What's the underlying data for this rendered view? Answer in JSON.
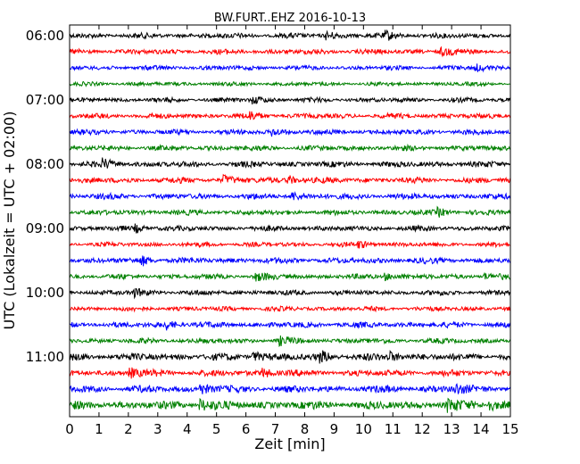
{
  "chart_data": {
    "type": "line",
    "title": "BW.FURT..EHZ 2016-10-13",
    "xlabel": "Zeit  [min]",
    "ylabel": "UTC (Lokalzeit = UTC + 02:00)",
    "xlim": [
      0,
      15
    ],
    "x_ticks": [
      "0",
      "1",
      "2",
      "3",
      "4",
      "5",
      "6",
      "7",
      "8",
      "9",
      "10",
      "11",
      "12",
      "13",
      "14",
      "15"
    ],
    "y_ticks": [
      "06:00",
      "07:00",
      "08:00",
      "09:00",
      "10:00",
      "11:00"
    ],
    "grid": false,
    "legend": "none",
    "colors": [
      "#000000",
      "#ff0000",
      "#0000ff",
      "#008000"
    ],
    "series": [
      {
        "start": "06:00",
        "color": "#000000",
        "amplitude": 0.45,
        "events": [
          8.8,
          10.8
        ]
      },
      {
        "start": "06:15",
        "color": "#ff0000",
        "amplitude": 0.45,
        "events": [
          12.7
        ]
      },
      {
        "start": "06:30",
        "color": "#0000ff",
        "amplitude": 0.4,
        "events": [
          13.9
        ]
      },
      {
        "start": "06:45",
        "color": "#008000",
        "amplitude": 0.35,
        "events": []
      },
      {
        "start": "07:00",
        "color": "#000000",
        "amplitude": 0.4,
        "events": [
          6.3
        ]
      },
      {
        "start": "07:15",
        "color": "#ff0000",
        "amplitude": 0.45,
        "events": [
          6.2
        ]
      },
      {
        "start": "07:30",
        "color": "#0000ff",
        "amplitude": 0.45,
        "events": [
          6.9
        ]
      },
      {
        "start": "07:45",
        "color": "#008000",
        "amplitude": 0.45,
        "events": []
      },
      {
        "start": "08:00",
        "color": "#000000",
        "amplitude": 0.5,
        "events": [
          1.2
        ]
      },
      {
        "start": "08:15",
        "color": "#ff0000",
        "amplitude": 0.5,
        "events": [
          5.3,
          7.5
        ]
      },
      {
        "start": "08:30",
        "color": "#0000ff",
        "amplitude": 0.5,
        "events": [
          7.6
        ]
      },
      {
        "start": "08:45",
        "color": "#008000",
        "amplitude": 0.45,
        "events": [
          12.6
        ]
      },
      {
        "start": "09:00",
        "color": "#000000",
        "amplitude": 0.45,
        "events": [
          2.3
        ]
      },
      {
        "start": "09:15",
        "color": "#ff0000",
        "amplitude": 0.4,
        "events": [
          9.9
        ]
      },
      {
        "start": "09:30",
        "color": "#0000ff",
        "amplitude": 0.5,
        "events": [
          2.5
        ]
      },
      {
        "start": "09:45",
        "color": "#008000",
        "amplitude": 0.45,
        "events": [
          6.4,
          10.8,
          14.1
        ]
      },
      {
        "start": "10:00",
        "color": "#000000",
        "amplitude": 0.45,
        "events": [
          2.2
        ]
      },
      {
        "start": "10:15",
        "color": "#ff0000",
        "amplitude": 0.4,
        "events": []
      },
      {
        "start": "10:30",
        "color": "#0000ff",
        "amplitude": 0.5,
        "events": [
          3.3
        ]
      },
      {
        "start": "10:45",
        "color": "#008000",
        "amplitude": 0.45,
        "events": [
          7.2
        ]
      },
      {
        "start": "11:00",
        "color": "#000000",
        "amplitude": 0.6,
        "events": [
          6.3,
          8.6,
          10.9
        ]
      },
      {
        "start": "11:15",
        "color": "#ff0000",
        "amplitude": 0.55,
        "events": [
          2.1,
          6.6
        ]
      },
      {
        "start": "11:30",
        "color": "#0000ff",
        "amplitude": 0.6,
        "events": [
          4.5,
          13.2
        ]
      },
      {
        "start": "11:45",
        "color": "#008000",
        "amplitude": 0.7,
        "events": [
          4.5,
          12.9,
          14.3
        ]
      }
    ]
  }
}
